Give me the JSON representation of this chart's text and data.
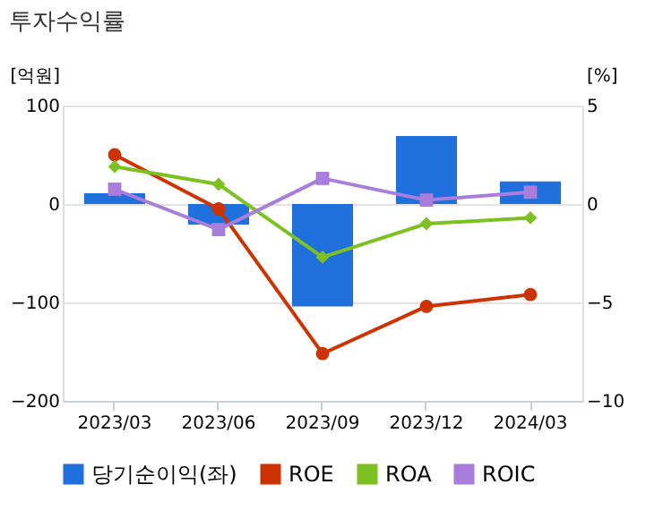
{
  "chart_data": {
    "type": "bar",
    "title": "투자수익률",
    "ylabel": "[억원]",
    "y2label": "[%]",
    "categories": [
      "2023/03",
      "2023/06",
      "2023/09",
      "2023/12",
      "2024/03"
    ],
    "series": [
      {
        "name": "당기순이익(좌)",
        "color": "#1f6fdc",
        "values": [
          11,
          -21,
          -104,
          69,
          23
        ]
      },
      {
        "name": "ROE",
        "type": "line",
        "axis": "y2",
        "marker": "circle",
        "color": "#cc3300",
        "values": [
          2.5,
          -0.25,
          -7.6,
          -5.2,
          -4.6
        ]
      },
      {
        "name": "ROA",
        "type": "line",
        "axis": "y2",
        "marker": "diamond",
        "color": "#7cc121",
        "values": [
          1.9,
          1.0,
          -2.7,
          -1.0,
          -0.7
        ]
      },
      {
        "name": "ROIC",
        "type": "line",
        "axis": "y2",
        "marker": "square",
        "color": "#a87ddb",
        "values": [
          0.75,
          -1.3,
          1.3,
          0.2,
          0.6
        ]
      }
    ],
    "ylim": [
      -200,
      100
    ],
    "yticks": [
      -200,
      -100,
      0,
      100
    ],
    "y2lim": [
      -10,
      5
    ],
    "y2ticks": [
      -10,
      -5,
      0,
      5
    ],
    "grid": "y",
    "legend": "bottom"
  }
}
